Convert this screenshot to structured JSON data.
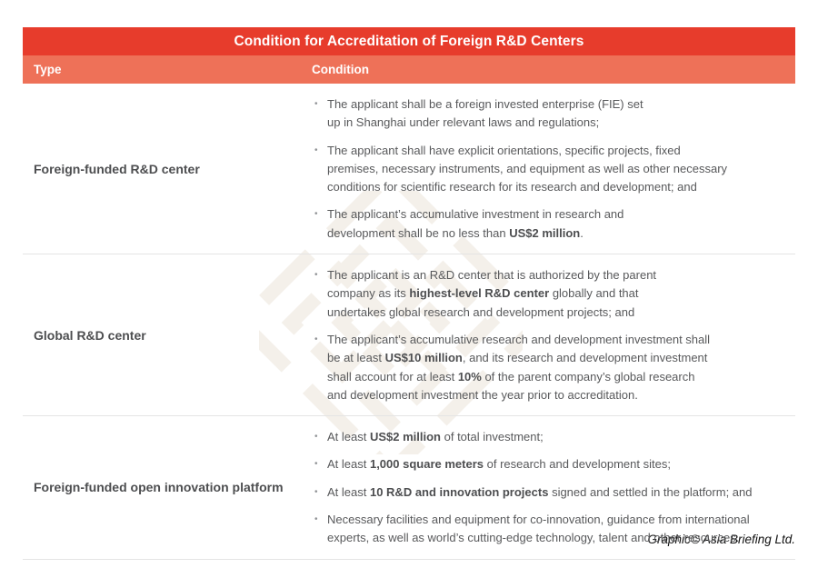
{
  "chart_data": {
    "type": "table",
    "title": "Condition for Accreditation of Foreign R&D Centers",
    "columns": [
      "Type",
      "Condition"
    ],
    "bullet_glyph": "•",
    "rows": [
      {
        "type": "Foreign-funded R&D center",
        "conditions": [
          {
            "segments": [
              {
                "t": "The applicant shall be a foreign invested enterprise (FIE) set\nup in Shanghai under relevant laws and regulations;",
                "b": false
              }
            ]
          },
          {
            "segments": [
              {
                "t": "The applicant shall have explicit orientations, specific projects, fixed\npremises, necessary instruments, and equipment as well as other necessary\nconditions for scientific research for its research and development; and",
                "b": false
              }
            ]
          },
          {
            "segments": [
              {
                "t": "The applicant’s accumulative investment in research and\ndevelopment shall be no less than ",
                "b": false
              },
              {
                "t": "US$2 million",
                "b": true
              },
              {
                "t": ".",
                "b": false
              }
            ]
          }
        ]
      },
      {
        "type": "Global R&D center",
        "conditions": [
          {
            "segments": [
              {
                "t": "The applicant is an R&D center that is authorized by the parent\ncompany as its ",
                "b": false
              },
              {
                "t": "highest-level R&D center",
                "b": true
              },
              {
                "t": " globally and that\nundertakes global research and development projects; and",
                "b": false
              }
            ]
          },
          {
            "segments": [
              {
                "t": "The applicant’s accumulative research and development investment shall\nbe at least ",
                "b": false
              },
              {
                "t": "US$10 million",
                "b": true
              },
              {
                "t": ", and its research and development investment\nshall account for at least ",
                "b": false
              },
              {
                "t": "10%",
                "b": true
              },
              {
                "t": " of the parent company’s global research\nand development investment the year prior to accreditation.",
                "b": false
              }
            ]
          }
        ]
      },
      {
        "type": "Foreign-funded open innovation platform",
        "conditions": [
          {
            "segments": [
              {
                "t": "At least ",
                "b": false
              },
              {
                "t": "US$2 million",
                "b": true
              },
              {
                "t": " of total investment;",
                "b": false
              }
            ]
          },
          {
            "segments": [
              {
                "t": "At least ",
                "b": false
              },
              {
                "t": "1,000 square meters",
                "b": true
              },
              {
                "t": " of research and development sites;",
                "b": false
              }
            ]
          },
          {
            "segments": [
              {
                "t": "At least ",
                "b": false
              },
              {
                "t": "10 R&D and innovation projects",
                "b": true
              },
              {
                "t": " signed and settled in the platform; and",
                "b": false
              }
            ]
          },
          {
            "segments": [
              {
                "t": "Necessary facilities and equipment for co-innovation, guidance from international\nexperts, as well as world’s cutting-edge technology, talent and other resources.",
                "b": false
              }
            ]
          }
        ]
      }
    ]
  },
  "credit": "Graphic© Asia Briefing Ltd.",
  "icons": {
    "watermark": "asia-briefing-knot-logo",
    "bullet": "bullet-dot"
  },
  "colors": {
    "title_bar": "#e73c2c",
    "header_bar": "#ee7158",
    "body_text": "#58595b",
    "type_text": "#4d4e50",
    "divider": "#e4e4e4",
    "watermark": "#f4f0ea",
    "bullet": "#939598"
  }
}
